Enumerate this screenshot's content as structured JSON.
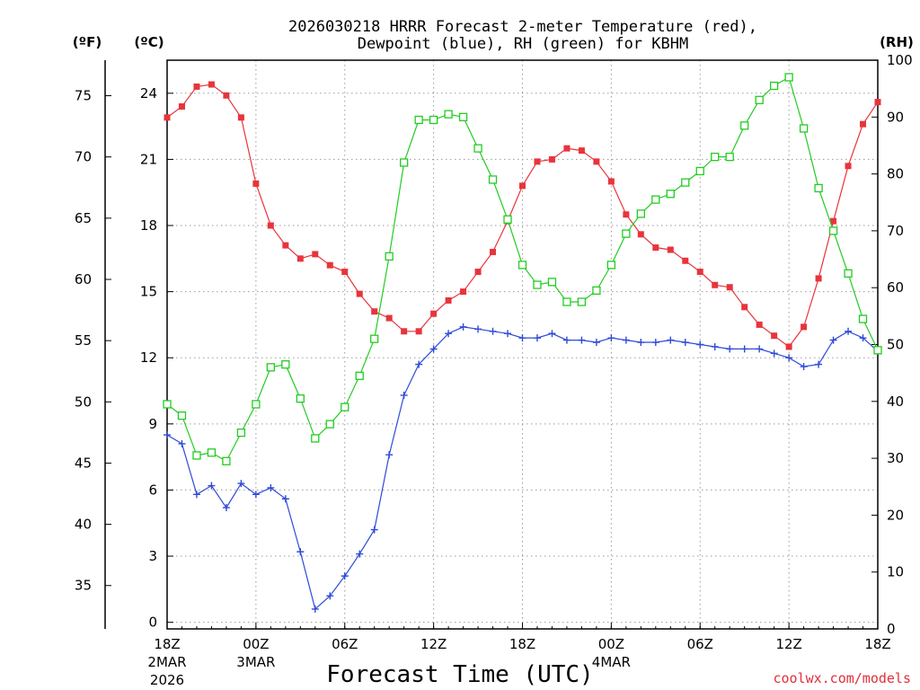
{
  "chart_data": {
    "type": "line",
    "title_line1": "2026030218 HRRR Forecast 2-meter Temperature (red),",
    "title_line2": "Dewpoint (blue), RH (green) for KBHM",
    "xlabel": "Forecast Time (UTC)",
    "credit": "coolwx.com/models",
    "units": {
      "fahrenheit": "(ºF)",
      "celsius": "(ºC)",
      "rh": "(RH)"
    },
    "forecast_hours": [
      0,
      1,
      2,
      3,
      4,
      5,
      6,
      7,
      8,
      9,
      10,
      11,
      12,
      13,
      14,
      15,
      16,
      17,
      18,
      19,
      20,
      21,
      22,
      23,
      24,
      25,
      26,
      27,
      28,
      29,
      30,
      31,
      32,
      33,
      34,
      35,
      36,
      37,
      38,
      39,
      40,
      41,
      42,
      43,
      44,
      45,
      46,
      47,
      48
    ],
    "x_ticks": [
      {
        "hour": 0,
        "line1": "18Z",
        "line2": "2MAR",
        "line3": "2026"
      },
      {
        "hour": 6,
        "line1": "00Z",
        "line2": "3MAR",
        "line3": ""
      },
      {
        "hour": 12,
        "line1": "06Z",
        "line2": "",
        "line3": ""
      },
      {
        "hour": 18,
        "line1": "12Z",
        "line2": "",
        "line3": ""
      },
      {
        "hour": 24,
        "line1": "18Z",
        "line2": "",
        "line3": ""
      },
      {
        "hour": 30,
        "line1": "00Z",
        "line2": "4MAR",
        "line3": ""
      },
      {
        "hour": 36,
        "line1": "06Z",
        "line2": "",
        "line3": ""
      },
      {
        "hour": 42,
        "line1": "12Z",
        "line2": "",
        "line3": ""
      },
      {
        "hour": 48,
        "line1": "18Z",
        "line2": "",
        "line3": ""
      }
    ],
    "y_celsius_range": [
      -0.3,
      25.5
    ],
    "y_celsius_ticks": [
      "0",
      "3",
      "6",
      "9",
      "12",
      "15",
      "18",
      "21",
      "24"
    ],
    "y_fahrenheit_ticks": [
      "35",
      "40",
      "45",
      "50",
      "55",
      "60",
      "65",
      "70",
      "75"
    ],
    "y_rh_range": [
      0,
      100
    ],
    "y_rh_ticks": [
      "0",
      "10",
      "20",
      "30",
      "40",
      "50",
      "60",
      "70",
      "80",
      "90",
      "100"
    ],
    "series": [
      {
        "name": "Temperature",
        "unit": "C",
        "color": "#e8343c",
        "marker": "filled-square",
        "values": [
          22.9,
          23.4,
          24.3,
          24.4,
          23.9,
          22.9,
          19.9,
          18.0,
          17.1,
          16.5,
          16.7,
          16.2,
          15.9,
          14.9,
          14.1,
          13.8,
          13.2,
          13.2,
          14.0,
          14.6,
          15.0,
          15.9,
          16.8,
          18.2,
          19.8,
          20.9,
          21.0,
          21.5,
          21.4,
          20.9,
          20.0,
          18.5,
          17.6,
          17.0,
          16.9,
          16.4,
          15.9,
          15.3,
          15.2,
          14.3,
          13.5,
          13.0,
          12.5,
          13.4,
          15.6,
          18.2,
          20.7,
          22.6,
          23.6
        ]
      },
      {
        "name": "Dewpoint",
        "unit": "C",
        "color": "#2e4ad8",
        "marker": "plus",
        "values": [
          8.5,
          8.1,
          5.8,
          6.2,
          5.2,
          6.3,
          5.8,
          6.1,
          5.6,
          3.2,
          0.6,
          1.2,
          2.1,
          3.1,
          4.2,
          7.6,
          10.3,
          11.7,
          12.4,
          13.1,
          13.4,
          13.3,
          13.2,
          13.1,
          12.9,
          12.9,
          13.1,
          12.8,
          12.8,
          12.7,
          12.9,
          12.8,
          12.7,
          12.7,
          12.8,
          12.7,
          12.6,
          12.5,
          12.4,
          12.4,
          12.4,
          12.2,
          12.0,
          11.6,
          11.7,
          12.8,
          13.2,
          12.9,
          12.3
        ]
      },
      {
        "name": "RH",
        "unit": "%",
        "color": "#22cc22",
        "marker": "open-square",
        "values": [
          39.5,
          37.5,
          30.5,
          31.0,
          29.5,
          34.5,
          39.5,
          46.0,
          46.5,
          40.5,
          33.5,
          36.0,
          39.0,
          44.5,
          51.0,
          65.5,
          82.0,
          89.5,
          89.5,
          90.5,
          90.0,
          84.5,
          79.0,
          72.0,
          64.0,
          60.5,
          61.0,
          57.5,
          57.5,
          59.5,
          64.0,
          69.5,
          73.0,
          75.5,
          76.5,
          78.5,
          80.5,
          83.0,
          83.0,
          88.5,
          93.0,
          95.5,
          97.0,
          88.0,
          77.5,
          70.0,
          62.5,
          54.5,
          49.0
        ]
      }
    ]
  }
}
